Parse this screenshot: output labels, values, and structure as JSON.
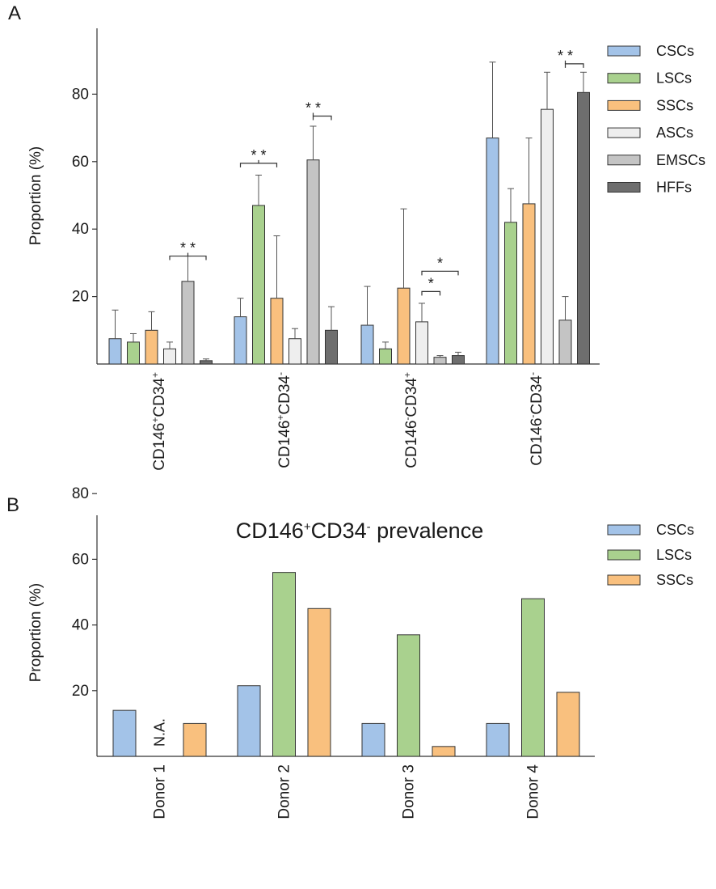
{
  "chart_data": [
    {
      "panel": "A",
      "type": "bar",
      "ylabel": "Proportion (%)",
      "ylim": [
        0,
        100
      ],
      "yticks": [
        20,
        40,
        60,
        80
      ],
      "categories": [
        {
          "main": "CD146",
          "sup1": "+",
          "mid": "CD34",
          "sup2": "+"
        },
        {
          "main": "CD146",
          "sup1": "+",
          "mid": "CD34",
          "sup2": "-"
        },
        {
          "main": "CD146",
          "sup1": "-",
          "mid": "CD34",
          "sup2": "+"
        },
        {
          "main": "CD146",
          "sup1": "-",
          "mid": "CD34",
          "sup2": "-"
        }
      ],
      "series": [
        {
          "name": "CSCs",
          "color": "#a3c3e8",
          "values": [
            7.5,
            14,
            11.5,
            67
          ],
          "errors": [
            8.5,
            5.5,
            11.5,
            22.5
          ]
        },
        {
          "name": "LSCs",
          "color": "#a9d18e",
          "values": [
            6.5,
            47,
            4.5,
            42
          ],
          "errors": [
            2.5,
            9,
            2,
            10
          ]
        },
        {
          "name": "SSCs",
          "color": "#f9c07e",
          "values": [
            10,
            19.5,
            22.5,
            47.5
          ],
          "errors": [
            5.5,
            18.5,
            23.5,
            19.5
          ]
        },
        {
          "name": "ASCs",
          "color": "#eeeeee",
          "values": [
            4.5,
            7.5,
            12.5,
            75.5
          ],
          "errors": [
            2,
            3,
            5.5,
            11
          ]
        },
        {
          "name": "EMSCs",
          "color": "#c4c4c4",
          "values": [
            24.5,
            60.5,
            2,
            13
          ],
          "errors": [
            7.5,
            10,
            0.5,
            7
          ]
        },
        {
          "name": "HFFs",
          "color": "#6e6e6e",
          "values": [
            1,
            10,
            2.5,
            80.5
          ],
          "errors": [
            0.5,
            7,
            1,
            6
          ]
        }
      ],
      "significance": [
        {
          "category": 0,
          "from": 3,
          "to": 5,
          "mid": 4,
          "level": 32,
          "label": "* *"
        },
        {
          "category": 1,
          "from": 0,
          "to": 2,
          "mid": 1,
          "level": 59.5,
          "label": "* *"
        },
        {
          "category": 1,
          "from": 4,
          "to": 5,
          "mid": 4,
          "level": 73.5,
          "label": "* *"
        },
        {
          "category": 2,
          "from": 3,
          "to": 4,
          "mid": null,
          "level": 21.5,
          "label": "*"
        },
        {
          "category": 2,
          "from": 3,
          "to": 5,
          "mid": null,
          "level": 27.5,
          "label": "*"
        },
        {
          "category": 3,
          "from": 4,
          "to": 5,
          "mid": 4,
          "level": 89,
          "label": "* *"
        }
      ],
      "legend_position": "top-right"
    },
    {
      "panel": "B",
      "type": "bar",
      "title_main": "CD146",
      "title_sup1": "+",
      "title_mid": "CD34",
      "title_sup2": "-",
      "title_rest": " prevalence",
      "ylabel": "Proportion (%)",
      "ylim": [
        0,
        100
      ],
      "yticks": [
        20,
        40,
        60,
        80
      ],
      "categories": [
        "Donor 1",
        "Donor 2",
        "Donor 3",
        "Donor 4"
      ],
      "series": [
        {
          "name": "CSCs",
          "color": "#a3c3e8",
          "values": [
            14,
            21.5,
            10,
            10
          ]
        },
        {
          "name": "LSCs",
          "color": "#a9d18e",
          "values": [
            null,
            56,
            37,
            48
          ]
        },
        {
          "name": "SSCs",
          "color": "#f9c07e",
          "values": [
            10,
            45,
            3,
            19.5
          ]
        }
      ],
      "missing_label": "N.A.",
      "legend_position": "top-right"
    }
  ]
}
